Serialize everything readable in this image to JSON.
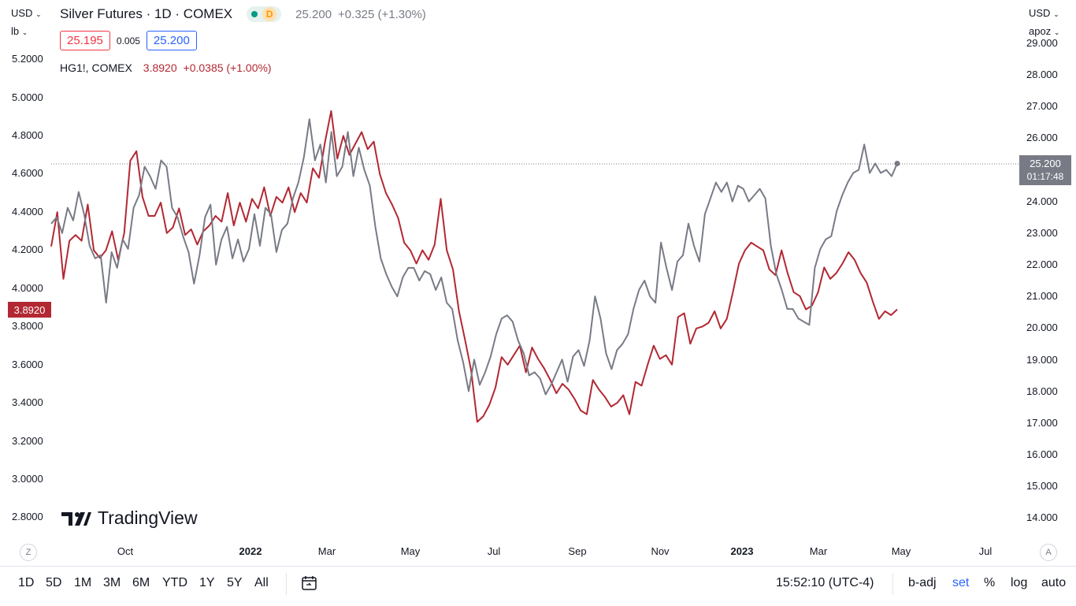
{
  "header": {
    "title": "Silver Futures · 1D · COMEX",
    "delayed_badge": "D",
    "price": "25.200",
    "change": "+0.325 (+1.30%)",
    "bid": "25.195",
    "spread": "0.005",
    "ask": "25.200"
  },
  "compare_symbol": {
    "name": "HG1!, COMEX",
    "price": "3.8920",
    "change": "+0.0385 (+1.00%)"
  },
  "left_scale": {
    "currency": "USD",
    "unit": "lb",
    "ticks": [
      "5.2000",
      "5.0000",
      "4.8000",
      "4.6000",
      "4.4000",
      "4.2000",
      "4.0000",
      "3.8000",
      "3.6000",
      "3.4000",
      "3.2000",
      "3.0000",
      "2.8000"
    ],
    "last_price_tag": "3.8920"
  },
  "right_scale": {
    "currency": "USD",
    "unit": "apoz",
    "ticks": [
      "29.000",
      "28.000",
      "27.000",
      "26.000",
      "25.000",
      "24.000",
      "23.000",
      "22.000",
      "21.000",
      "20.000",
      "19.000",
      "18.000",
      "17.000",
      "16.000",
      "15.000",
      "14.000"
    ],
    "last_price_tag": "25.200",
    "countdown": "01:17:48"
  },
  "x_axis": {
    "labels": [
      "Oct",
      "2022",
      "Mar",
      "May",
      "Jul",
      "Sep",
      "Nov",
      "2023",
      "Mar",
      "May",
      "Jul"
    ]
  },
  "watermark": "TradingView",
  "goto_date_button": "Z",
  "auto_scale_button": "A",
  "bottom_toolbar": {
    "timeframes": [
      "1D",
      "5D",
      "1M",
      "3M",
      "6M",
      "YTD",
      "1Y",
      "5Y",
      "All"
    ],
    "clock": "15:52:10 (UTC-4)",
    "options": [
      "b-adj",
      "set",
      "%",
      "log",
      "auto"
    ]
  },
  "colors": {
    "silver_series": "#787b86",
    "copper_series": "#b22833",
    "accent": "#2962ff"
  },
  "chart_data": {
    "type": "line",
    "series": [
      {
        "name": "Silver Futures",
        "axis": "right",
        "values": [
          23.3,
          23.5,
          23.0,
          23.8,
          23.4,
          24.3,
          23.6,
          22.6,
          22.2,
          22.3,
          20.8,
          22.4,
          21.9,
          22.8,
          22.5,
          23.8,
          24.2,
          25.1,
          24.8,
          24.4,
          25.3,
          25.1,
          23.8,
          23.5,
          22.9,
          22.4,
          21.4,
          22.3,
          23.5,
          23.9,
          22.0,
          22.8,
          23.2,
          22.2,
          22.8,
          22.1,
          22.5,
          23.6,
          22.6,
          23.8,
          23.6,
          22.4,
          23.1,
          23.3,
          24.1,
          24.6,
          25.4,
          26.6,
          25.3,
          25.8,
          24.6,
          26.2,
          24.8,
          25.1,
          26.2,
          24.8,
          25.7,
          25.0,
          24.5,
          23.2,
          22.2,
          21.7,
          21.3,
          21.0,
          21.6,
          21.9,
          21.9,
          21.5,
          21.8,
          21.7,
          21.2,
          21.6,
          20.8,
          20.6,
          19.6,
          18.9,
          18.0,
          19.0,
          18.2,
          18.6,
          19.1,
          19.8,
          20.3,
          20.4,
          20.2,
          19.6,
          19.2,
          18.5,
          18.6,
          18.4,
          17.9,
          18.2,
          18.6,
          19.0,
          18.3,
          19.1,
          19.3,
          18.8,
          19.6,
          21.0,
          20.3,
          19.2,
          18.7,
          19.3,
          19.5,
          19.8,
          20.6,
          21.2,
          21.5,
          21.0,
          20.8,
          22.7,
          21.9,
          21.2,
          22.1,
          22.3,
          23.3,
          22.6,
          22.1,
          23.6,
          24.1,
          24.6,
          24.3,
          24.6,
          24.0,
          24.5,
          24.4,
          24.0,
          24.2,
          24.4,
          24.1,
          22.6,
          21.7,
          21.2,
          20.6,
          20.6,
          20.3,
          20.2,
          20.1,
          21.9,
          22.5,
          22.8,
          22.9,
          23.7,
          24.2,
          24.6,
          24.9,
          25.0,
          25.8,
          24.9,
          25.2,
          24.9,
          25.0,
          24.8,
          25.2
        ],
        "last": 25.2
      },
      {
        "name": "HG1!, COMEX",
        "axis": "left",
        "values": [
          4.22,
          4.4,
          4.05,
          4.25,
          4.28,
          4.25,
          4.44,
          4.2,
          4.16,
          4.2,
          4.3,
          4.15,
          4.29,
          4.67,
          4.72,
          4.48,
          4.38,
          4.38,
          4.45,
          4.29,
          4.32,
          4.42,
          4.28,
          4.31,
          4.23,
          4.3,
          4.33,
          4.38,
          4.35,
          4.5,
          4.33,
          4.45,
          4.35,
          4.47,
          4.42,
          4.53,
          4.38,
          4.48,
          4.45,
          4.53,
          4.4,
          4.5,
          4.45,
          4.63,
          4.58,
          4.77,
          4.93,
          4.68,
          4.8,
          4.7,
          4.76,
          4.82,
          4.73,
          4.77,
          4.6,
          4.5,
          4.44,
          4.37,
          4.24,
          4.2,
          4.13,
          4.2,
          4.15,
          4.23,
          4.47,
          4.2,
          4.1,
          3.88,
          3.73,
          3.57,
          3.3,
          3.33,
          3.39,
          3.48,
          3.64,
          3.6,
          3.65,
          3.7,
          3.56,
          3.69,
          3.63,
          3.58,
          3.52,
          3.45,
          3.5,
          3.47,
          3.42,
          3.36,
          3.34,
          3.52,
          3.47,
          3.43,
          3.38,
          3.4,
          3.44,
          3.34,
          3.51,
          3.49,
          3.6,
          3.7,
          3.63,
          3.65,
          3.6,
          3.85,
          3.87,
          3.71,
          3.79,
          3.8,
          3.82,
          3.88,
          3.79,
          3.84,
          3.98,
          4.13,
          4.2,
          4.24,
          4.22,
          4.2,
          4.1,
          4.07,
          4.2,
          4.08,
          3.98,
          3.96,
          3.89,
          3.91,
          3.98,
          4.11,
          4.05,
          4.08,
          4.13,
          4.19,
          4.15,
          4.08,
          4.03,
          3.93,
          3.84,
          3.88,
          3.86,
          3.89
        ]
      }
    ],
    "x_tick_labels": [
      "Oct",
      "2022",
      "Mar",
      "May",
      "Jul",
      "Sep",
      "Nov",
      "2023",
      "Mar",
      "May",
      "Jul"
    ],
    "left_axis": {
      "label": "lb",
      "ylim": [
        2.75,
        5.25
      ]
    },
    "right_axis": {
      "label": "apoz",
      "ylim": [
        13.75,
        29.25
      ]
    },
    "grid": false,
    "legend": "top-left"
  }
}
